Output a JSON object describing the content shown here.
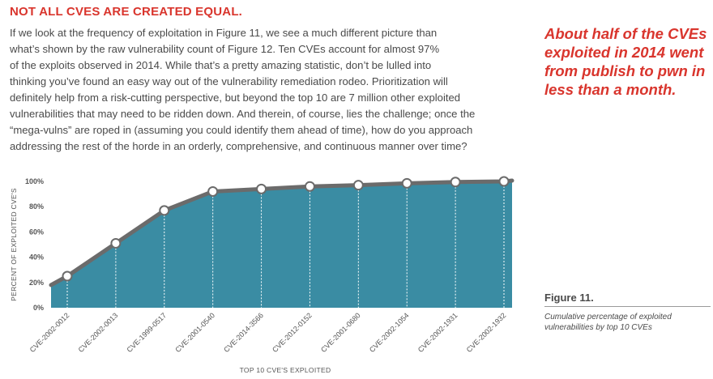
{
  "heading": "NOT ALL CVES ARE CREATED EQUAL.",
  "body_lines": [
    "If we look at the frequency of exploitation in Figure 11, we see a much different picture than",
    "what’s shown by the raw vulnerability count of Figure 12. Ten CVEs account for almost 97%",
    "of the exploits observed in 2014. While that’s a pretty amazing statistic, don’t be lulled into",
    "thinking you’ve found an easy way out of the vulnerability remediation rodeo. Prioritization will",
    "definitely help from a risk-cutting perspective, but beyond the top 10 are 7 million other exploited",
    "vulnerabilities that may need to be ridden down. And therein, of course, lies the challenge; once the",
    "“mega-vulns” are roped in (assuming you could identify them ahead of time), how do you approach",
    "addressing the rest of the horde in an orderly, comprehensive, and continuous manner over time?"
  ],
  "callout": "About half of the CVEs exploited in 2014 went from publish to pwn in less than a month.",
  "figure": {
    "label": "Figure 11.",
    "caption": "Cumulative percentage of exploited vulnerabilities by top 10 CVEs"
  },
  "colors": {
    "accent": "#d9352d",
    "area": "#3a8ca3",
    "line": "#6b6b6b",
    "text": "#4a4a4a"
  },
  "chart_data": {
    "type": "area",
    "title": "",
    "xlabel": "TOP 10 CVE'S EXPLOITED",
    "ylabel": "PERCENT OF EXPLOITED CVE'S",
    "categories": [
      "CVE-2002-0012",
      "CVE-2002-0013",
      "CVE-1999-0517",
      "CVE-2001-0540",
      "CVE-2014-3566",
      "CVE-2012-0152",
      "CVE-2001-0680",
      "CVE-2002-1054",
      "CVE-2002-1931",
      "CVE-2002-1932"
    ],
    "values": [
      25,
      51,
      77,
      92,
      94,
      96,
      97,
      98.5,
      99.5,
      100
    ],
    "start_value": 18,
    "ylim": [
      0,
      100
    ],
    "yticks": [
      "0%",
      "20%",
      "40%",
      "60%",
      "80%",
      "100%"
    ],
    "ytick_values": [
      0,
      20,
      40,
      60,
      80,
      100
    ]
  }
}
